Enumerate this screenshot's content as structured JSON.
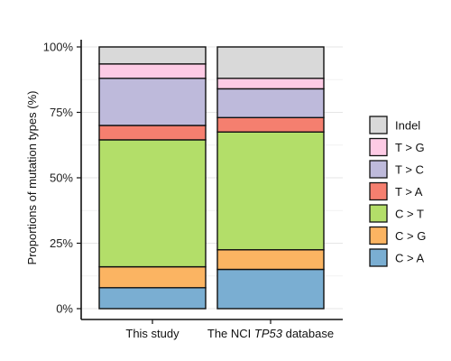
{
  "chart_data": {
    "type": "bar",
    "stacked": true,
    "ylabel": "Proportions of mutation types (%)",
    "ylim": [
      0,
      100
    ],
    "yticks": [
      {
        "value": 0,
        "label": "0%"
      },
      {
        "value": 25,
        "label": "25%"
      },
      {
        "value": 50,
        "label": "50%"
      },
      {
        "value": 75,
        "label": "75%"
      },
      {
        "value": 100,
        "label": "100%"
      }
    ],
    "grid": true,
    "legend_position": "right",
    "categories": [
      {
        "parts": [
          {
            "text": "This study",
            "italic": false
          }
        ]
      },
      {
        "parts": [
          {
            "text": "The NCI ",
            "italic": false
          },
          {
            "text": "TP53",
            "italic": true
          },
          {
            "text": " database",
            "italic": false
          }
        ]
      }
    ],
    "series": [
      {
        "name": "C > A",
        "color": "#7aaed2",
        "values": [
          8,
          15
        ]
      },
      {
        "name": "C > G",
        "color": "#fbb462",
        "values": [
          8,
          7.5
        ]
      },
      {
        "name": "C > T",
        "color": "#b3de69",
        "values": [
          48.5,
          45
        ]
      },
      {
        "name": "T > A",
        "color": "#f57f6f",
        "values": [
          5.5,
          5.5
        ]
      },
      {
        "name": "T > C",
        "color": "#bebadb",
        "values": [
          18,
          11
        ]
      },
      {
        "name": "T > G",
        "color": "#fdcbe5",
        "values": [
          5.5,
          4
        ]
      },
      {
        "name": "Indel",
        "color": "#d9d9d9",
        "values": [
          6.5,
          12
        ]
      }
    ]
  }
}
